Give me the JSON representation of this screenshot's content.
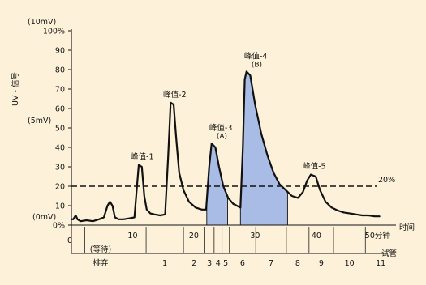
{
  "chart_data": {
    "type": "line",
    "y_units_label": "(10mV)",
    "y_mid_label": "(5mV)",
    "y_zero_label": "(0mV)",
    "ylabel": "UV - 信号",
    "y_ticks": [
      "0%",
      "10",
      "20",
      "30",
      "40",
      "50",
      "60",
      "70",
      "80",
      "90",
      "100%"
    ],
    "ylim": [
      0,
      100
    ],
    "x_ticks": [
      {
        "value": 0,
        "label": "0"
      },
      {
        "value": 10,
        "label": "10"
      },
      {
        "value": 20,
        "label": "20"
      },
      {
        "value": 30,
        "label": "30"
      },
      {
        "value": 40,
        "label": "40"
      },
      {
        "value": 50,
        "label": "50分钟"
      }
    ],
    "xlim": [
      0,
      53
    ],
    "xlabel": "时间",
    "threshold": {
      "value": 20,
      "label": "20%"
    },
    "trace": [
      [
        0,
        3
      ],
      [
        0.3,
        3
      ],
      [
        0.7,
        5
      ],
      [
        1.0,
        3
      ],
      [
        1.5,
        2
      ],
      [
        2.5,
        2.5
      ],
      [
        3.5,
        2
      ],
      [
        4.5,
        3
      ],
      [
        5.3,
        4
      ],
      [
        5.9,
        10
      ],
      [
        6.3,
        12
      ],
      [
        6.7,
        10
      ],
      [
        7.1,
        4
      ],
      [
        7.7,
        3
      ],
      [
        8.5,
        3
      ],
      [
        9.5,
        3.5
      ],
      [
        10.3,
        4
      ],
      [
        10.7,
        20
      ],
      [
        11.0,
        31
      ],
      [
        11.5,
        30
      ],
      [
        11.9,
        15
      ],
      [
        12.3,
        8
      ],
      [
        12.9,
        6
      ],
      [
        13.6,
        5.5
      ],
      [
        14.5,
        5
      ],
      [
        15.3,
        5.5
      ],
      [
        15.8,
        35
      ],
      [
        16.2,
        63
      ],
      [
        16.7,
        62
      ],
      [
        17.1,
        45
      ],
      [
        17.6,
        27
      ],
      [
        18.3,
        18
      ],
      [
        19.2,
        12
      ],
      [
        20.3,
        9
      ],
      [
        21.3,
        8
      ],
      [
        22.0,
        8
      ],
      [
        22.5,
        30
      ],
      [
        22.9,
        42
      ],
      [
        23.5,
        40
      ],
      [
        24.1,
        30
      ],
      [
        24.8,
        20
      ],
      [
        25.6,
        14
      ],
      [
        26.4,
        11
      ],
      [
        27.0,
        10
      ],
      [
        27.6,
        9
      ],
      [
        28.0,
        40
      ],
      [
        28.3,
        75
      ],
      [
        28.6,
        79
      ],
      [
        29.2,
        77
      ],
      [
        30.0,
        62
      ],
      [
        31.0,
        47
      ],
      [
        32.0,
        36
      ],
      [
        33.0,
        27
      ],
      [
        34.0,
        21
      ],
      [
        35.0,
        18
      ],
      [
        36.0,
        15
      ],
      [
        37.0,
        14
      ],
      [
        37.8,
        17
      ],
      [
        38.5,
        23
      ],
      [
        39.1,
        26
      ],
      [
        39.9,
        25
      ],
      [
        40.6,
        18
      ],
      [
        41.5,
        12
      ],
      [
        42.5,
        9
      ],
      [
        43.5,
        7.5
      ],
      [
        44.5,
        6.5
      ],
      [
        45.5,
        6
      ],
      [
        46.5,
        5.5
      ],
      [
        47.5,
        5
      ],
      [
        48.5,
        5
      ],
      [
        49.5,
        4.5
      ],
      [
        50.3,
        4.5
      ]
    ],
    "peaks": [
      {
        "label": "峰值-1",
        "x": 11.0,
        "y": 31,
        "sub": ""
      },
      {
        "label": "峰值-2",
        "x": 16.3,
        "y": 63,
        "sub": ""
      },
      {
        "label": "峰值-3",
        "x": 22.9,
        "y": 42,
        "sub": "(A)"
      },
      {
        "label": "峰值-4",
        "x": 28.6,
        "y": 79,
        "sub": "(B)"
      },
      {
        "label": "峰值-5",
        "x": 39.1,
        "y": 26,
        "sub": ""
      }
    ],
    "shaded_regions": [
      {
        "name": "A",
        "from": 22.1,
        "to": 25.5,
        "color": "#a9bce6"
      },
      {
        "name": "B",
        "from": 27.6,
        "to": 35.3,
        "color": "#a9bce6"
      }
    ],
    "fractions": {
      "label": "试管",
      "boundaries": [
        2.2,
        12.2,
        18.3,
        21.8,
        23.3,
        24.6,
        25.8,
        30.1,
        35.1,
        38.8,
        42.8,
        48.0
      ],
      "items": [
        {
          "label": "(等待)",
          "from": 0,
          "to": 12.2,
          "extra": "排弃"
        },
        {
          "label": "1",
          "from": 12.2,
          "to": 18.3
        },
        {
          "label": "2",
          "from": 18.3,
          "to": 21.8
        },
        {
          "label": "3",
          "from": 21.8,
          "to": 23.3
        },
        {
          "label": "4",
          "from": 23.3,
          "to": 24.6
        },
        {
          "label": "5",
          "from": 24.6,
          "to": 25.8
        },
        {
          "label": "6",
          "from": 25.8,
          "to": 30.1
        },
        {
          "label": "7",
          "from": 30.1,
          "to": 35.1
        },
        {
          "label": "8",
          "from": 35.1,
          "to": 38.8
        },
        {
          "label": "9",
          "from": 38.8,
          "to": 42.8
        },
        {
          "label": "10",
          "from": 42.8,
          "to": 48.0
        },
        {
          "label": "11",
          "from": 48.0,
          "to": 53
        }
      ]
    },
    "colors": {
      "background": "#fdf2d9",
      "fill": "#a9bce6",
      "line": "#111111"
    }
  }
}
